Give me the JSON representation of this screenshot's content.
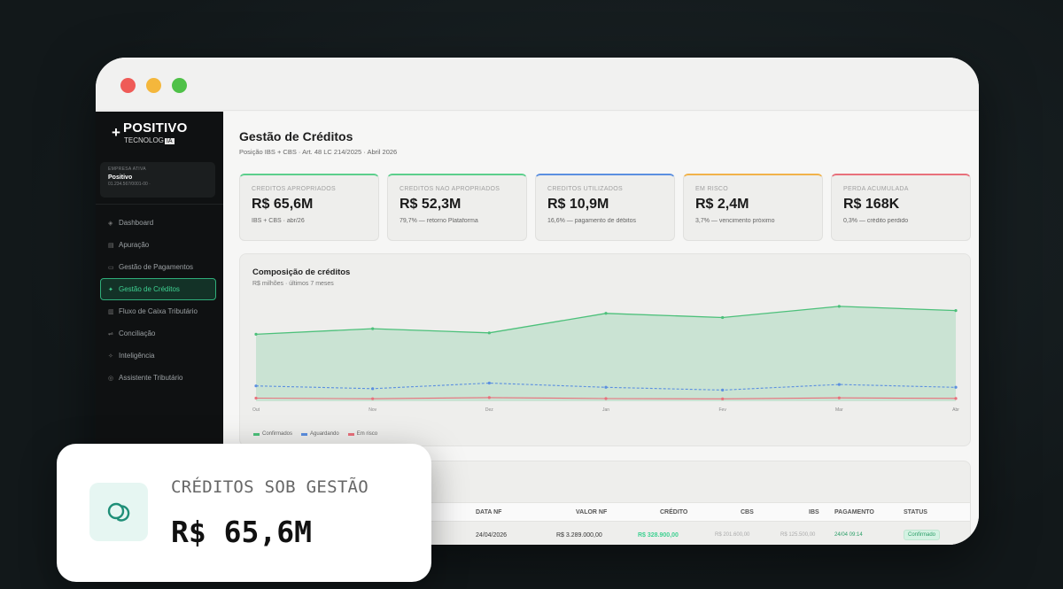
{
  "window": {
    "controls": [
      "close",
      "minimize",
      "maximize"
    ]
  },
  "sidebar": {
    "logo_main": "POSITIVO",
    "logo_sub": "TECNOLOG",
    "logo_badge": "IA",
    "company": {
      "label": "EMPRESA ATIVA",
      "name": "Positivo",
      "cnpj": "01.234.567/0001-00 ·"
    },
    "items": [
      {
        "label": "Dashboard",
        "icon": "dashboard-icon",
        "glyph": "◈"
      },
      {
        "label": "Apuração",
        "icon": "calculator-icon",
        "glyph": "▤"
      },
      {
        "label": "Gestão de Pagamentos",
        "icon": "payments-icon",
        "glyph": "▭"
      },
      {
        "label": "Gestão de Créditos",
        "icon": "credits-icon",
        "glyph": "✦",
        "active": true
      },
      {
        "label": "Fluxo de Caixa Tributário",
        "icon": "cashflow-icon",
        "glyph": "▥"
      },
      {
        "label": "Conciliação",
        "icon": "reconcile-icon",
        "glyph": "⇌"
      },
      {
        "label": "Inteligência",
        "icon": "intelligence-icon",
        "glyph": "✧"
      },
      {
        "label": "Assistente Tributário",
        "icon": "assistant-icon",
        "glyph": "◎"
      }
    ]
  },
  "main": {
    "title": "Gestão de Créditos",
    "subtitle": "Posição IBS + CBS · Art. 48 LC 214/2025 · Abril 2026",
    "kpis": [
      {
        "label": "CRÉDITOS APROPRIADOS",
        "value": "R$ 65,6M",
        "note": "IBS + CBS · abr/26",
        "accent": "#5ccf8c"
      },
      {
        "label": "CRÉDITOS NÃO APROPRIADOS",
        "value": "R$ 52,3M",
        "note": "79,7% — retorno Plataforma",
        "accent": "#5ccf8c"
      },
      {
        "label": "CRÉDITOS UTILIZADOS",
        "value": "R$ 10,9M",
        "note": "16,6% — pagamento de débitos",
        "accent": "#5b8fe0"
      },
      {
        "label": "EM RISCO",
        "value": "R$ 2,4M",
        "note": "3,7% — vencimento próximo",
        "accent": "#f1b24a"
      },
      {
        "label": "PERDA ACUMULADA",
        "value": "R$ 168K",
        "note": "0,3% — crédito perdido",
        "accent": "#e8707b"
      }
    ]
  },
  "chart_data": {
    "type": "area",
    "title": "Composição de créditos",
    "subtitle": "R$ milhões · últimos 7 meses",
    "categories": [
      "Out",
      "Nov",
      "Dez",
      "Jan",
      "Fev",
      "Mar",
      "Abr"
    ],
    "series": [
      {
        "name": "Confirmados",
        "color": "#4cc07a",
        "values": [
          48,
          52,
          49,
          63,
          60,
          68,
          65
        ]
      },
      {
        "name": "Aguardando",
        "color": "#5b8fe0",
        "values": [
          11,
          9,
          13,
          10,
          8,
          12,
          10
        ]
      },
      {
        "name": "Em risco",
        "color": "#e8707b",
        "values": [
          2.2,
          1.8,
          2.6,
          1.9,
          1.7,
          2.4,
          2.0
        ]
      }
    ],
    "ylim": [
      0,
      80
    ],
    "legend_position": "bottom-left",
    "grid": false
  },
  "table": {
    "columns": [
      "DATA NF",
      "VALOR NF",
      "CRÉDITO",
      "CBS",
      "IBS",
      "PAGAMENTO",
      "STATUS"
    ],
    "rows": [
      {
        "date": "24/04/2026",
        "valor": "R$ 3.289.000,00",
        "credito": "R$ 328.900,00",
        "cbs": "R$ 201.600,00",
        "ibs": "R$ 125.500,00",
        "pagamento": "24/04 09:14",
        "status": "Confirmado"
      }
    ]
  },
  "overlay": {
    "label": "CRÉDITOS SOB GESTÃO",
    "value": "R$ 65,6M",
    "icon": "coins-icon"
  }
}
